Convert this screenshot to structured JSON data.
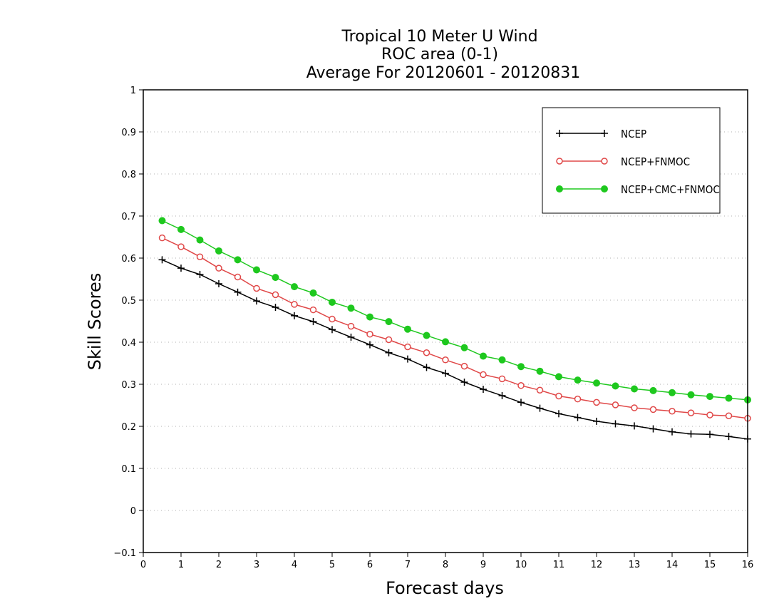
{
  "chart_data": {
    "type": "line",
    "title": [
      "Tropical 10 Meter U Wind",
      "ROC area (0-1)",
      "Average For 20120601 - 20120831"
    ],
    "xlabel": "Forecast days",
    "ylabel": "Skill Scores",
    "xlim": [
      0,
      16
    ],
    "ylim": [
      -0.1,
      1
    ],
    "xticks": [
      "0",
      "1",
      "2",
      "3",
      "4",
      "5",
      "6",
      "7",
      "8",
      "9",
      "10",
      "11",
      "12",
      "13",
      "14",
      "15",
      "16"
    ],
    "yticks": [
      "−0.1",
      "0",
      "0.1",
      "0.2",
      "0.3",
      "0.4",
      "0.5",
      "0.6",
      "0.7",
      "0.8",
      "0.9",
      "1"
    ],
    "grid": "horizontal dotted",
    "legend_position": "top-right",
    "x": [
      0.5,
      1,
      1.5,
      2,
      2.5,
      3,
      3.5,
      4,
      4.5,
      5,
      5.5,
      6,
      6.5,
      7,
      7.5,
      8,
      8.5,
      9,
      9.5,
      10,
      10.5,
      11,
      11.5,
      12,
      12.5,
      13,
      13.5,
      14,
      14.5,
      15,
      15.5,
      16
    ],
    "series": [
      {
        "name": "NCEP",
        "color": "#000000",
        "marker": "plus",
        "values": [
          0.596,
          0.576,
          0.561,
          0.539,
          0.519,
          0.498,
          0.483,
          0.463,
          0.449,
          0.43,
          0.412,
          0.394,
          0.375,
          0.36,
          0.34,
          0.326,
          0.305,
          0.288,
          0.273,
          0.257,
          0.243,
          0.23,
          0.221,
          0.212,
          0.206,
          0.201,
          0.194,
          0.187,
          0.182,
          0.181,
          0.176,
          0.17
        ]
      },
      {
        "name": "NCEP+FNMOC",
        "color": "#e04848",
        "marker": "open-circle",
        "values": [
          0.648,
          0.627,
          0.603,
          0.576,
          0.555,
          0.528,
          0.513,
          0.49,
          0.477,
          0.455,
          0.438,
          0.419,
          0.406,
          0.389,
          0.375,
          0.358,
          0.343,
          0.323,
          0.313,
          0.297,
          0.286,
          0.272,
          0.265,
          0.257,
          0.251,
          0.244,
          0.24,
          0.236,
          0.232,
          0.227,
          0.225,
          0.219
        ]
      },
      {
        "name": "NCEP+CMC+FNMOC",
        "color": "#1ec81e",
        "marker": "filled-circle",
        "values": [
          0.689,
          0.668,
          0.643,
          0.617,
          0.596,
          0.572,
          0.554,
          0.532,
          0.517,
          0.495,
          0.481,
          0.46,
          0.449,
          0.431,
          0.416,
          0.401,
          0.387,
          0.367,
          0.358,
          0.342,
          0.331,
          0.318,
          0.31,
          0.303,
          0.296,
          0.289,
          0.285,
          0.28,
          0.275,
          0.271,
          0.267,
          0.263
        ]
      }
    ]
  }
}
